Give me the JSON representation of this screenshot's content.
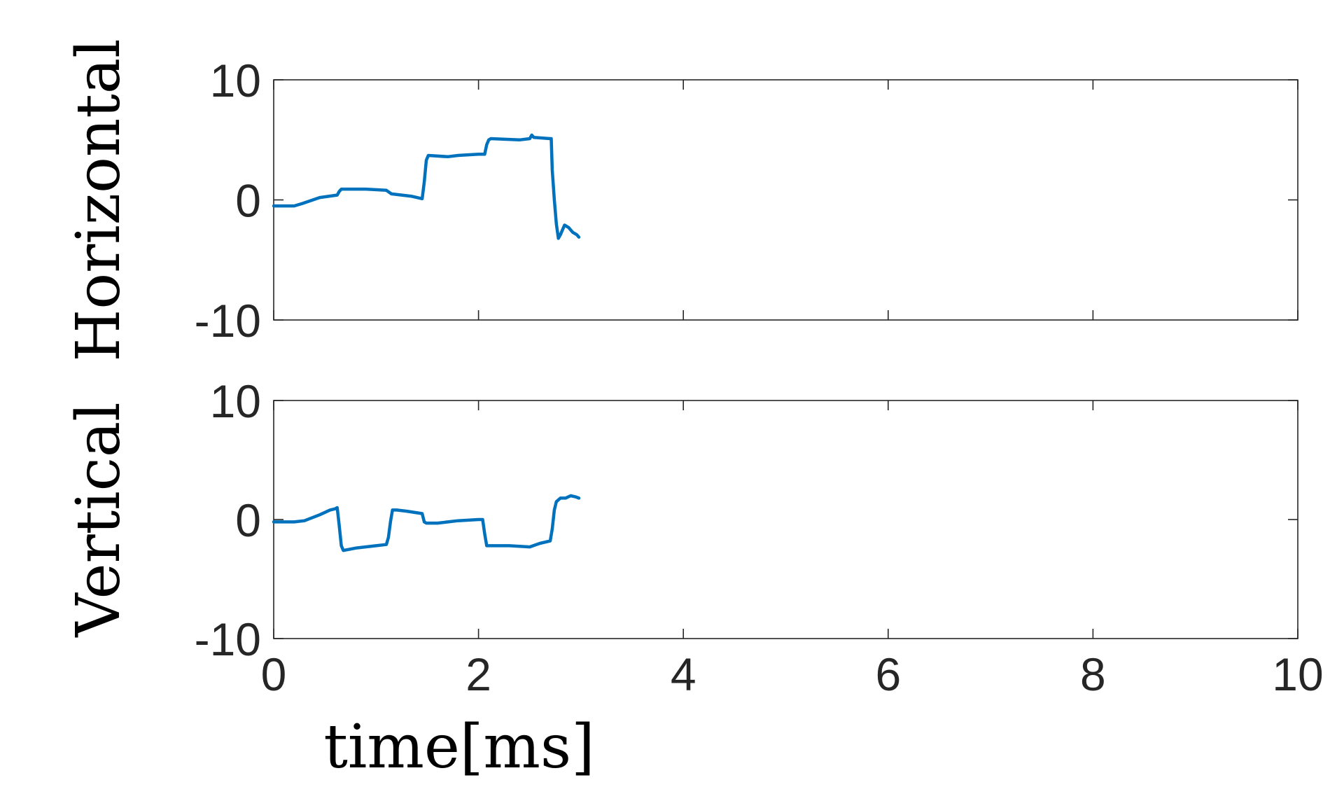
{
  "chart_data": [
    {
      "type": "line",
      "xlabel": "",
      "ylabel": "Horizontal",
      "xlim": [
        0,
        10
      ],
      "ylim": [
        -10,
        10
      ],
      "xticks": [
        0,
        2,
        4,
        6,
        8,
        10
      ],
      "yticks": [
        -10,
        0,
        10
      ],
      "ytick_labels": [
        "-10",
        "0",
        "10"
      ],
      "show_x_tick_labels": false,
      "grid": false,
      "series": [
        {
          "color": "#0072BD",
          "x": [
            0,
            0.2,
            0.28,
            0.45,
            0.62,
            0.64,
            0.66,
            0.9,
            1.1,
            1.15,
            1.35,
            1.45,
            1.47,
            1.49,
            1.51,
            1.7,
            1.8,
            2.0,
            2.06,
            2.08,
            2.1,
            2.12,
            2.4,
            2.5,
            2.52,
            2.54,
            2.7,
            2.71,
            2.72,
            2.74,
            2.76,
            2.78,
            2.8,
            2.84,
            2.88,
            2.92,
            2.96,
            2.98
          ],
          "y": [
            -0.5,
            -0.5,
            -0.3,
            0.2,
            0.4,
            0.7,
            0.9,
            0.9,
            0.8,
            0.5,
            0.3,
            0.1,
            1.5,
            3.3,
            3.7,
            3.6,
            3.7,
            3.8,
            3.8,
            4.6,
            5.0,
            5.1,
            5.0,
            5.1,
            5.4,
            5.2,
            5.1,
            5.1,
            2.5,
            0.0,
            -2.0,
            -3.2,
            -2.9,
            -2.1,
            -2.3,
            -2.7,
            -2.9,
            -3.1
          ]
        }
      ]
    },
    {
      "type": "line",
      "xlabel": "time[ms]",
      "ylabel": "Vertical",
      "xlim": [
        0,
        10
      ],
      "ylim": [
        -10,
        10
      ],
      "xticks": [
        0,
        2,
        4,
        6,
        8,
        10
      ],
      "xtick_labels": [
        "0",
        "2",
        "4",
        "6",
        "8",
        "10"
      ],
      "yticks": [
        -10,
        0,
        10
      ],
      "ytick_labels": [
        "-10",
        "0",
        "10"
      ],
      "show_x_tick_labels": true,
      "grid": false,
      "series": [
        {
          "color": "#0072BD",
          "x": [
            0,
            0.2,
            0.3,
            0.45,
            0.55,
            0.6,
            0.62,
            0.64,
            0.66,
            0.68,
            0.8,
            1.0,
            1.1,
            1.12,
            1.14,
            1.16,
            1.2,
            1.3,
            1.45,
            1.47,
            1.49,
            1.6,
            1.8,
            2.0,
            2.04,
            2.06,
            2.08,
            2.1,
            2.3,
            2.5,
            2.6,
            2.7,
            2.72,
            2.74,
            2.76,
            2.8,
            2.85,
            2.9,
            2.95,
            2.98
          ],
          "y": [
            -0.2,
            -0.2,
            -0.1,
            0.4,
            0.8,
            0.9,
            1.0,
            -0.5,
            -2.2,
            -2.6,
            -2.4,
            -2.2,
            -2.1,
            -1.5,
            -0.2,
            0.8,
            0.8,
            0.7,
            0.5,
            -0.2,
            -0.3,
            -0.3,
            -0.1,
            0.0,
            0.0,
            -1.2,
            -2.2,
            -2.2,
            -2.2,
            -2.3,
            -2.0,
            -1.8,
            -0.8,
            0.8,
            1.5,
            1.8,
            1.8,
            2.0,
            1.9,
            1.8
          ]
        }
      ]
    }
  ]
}
